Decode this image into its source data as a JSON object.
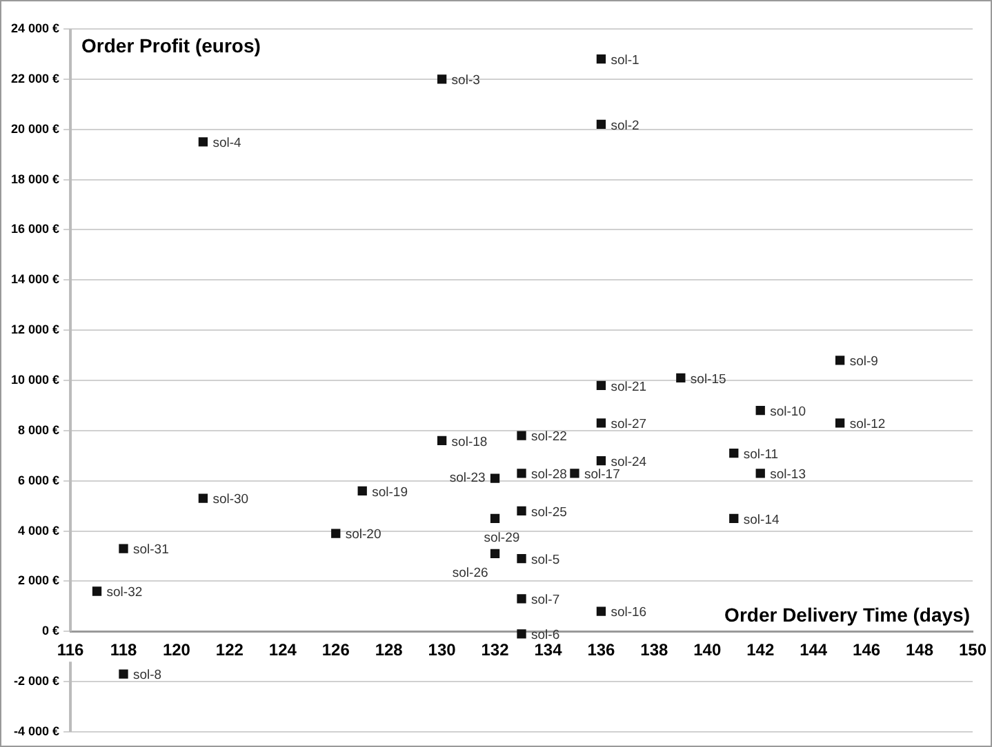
{
  "chart_data": {
    "type": "scatter",
    "xlabel": "Order Delivery Time (days)",
    "ylabel": "Order Profit (euros)",
    "x": [
      136,
      136,
      130,
      121,
      133,
      133,
      133,
      118,
      145,
      142,
      141,
      145,
      142,
      141,
      139,
      136,
      135,
      130,
      127,
      126,
      136,
      133,
      132,
      136,
      133,
      132,
      136,
      133,
      132,
      121,
      118,
      117
    ],
    "series": [
      {
        "color": "#111111",
        "values": [
          22800,
          20200,
          22000,
          19500,
          2900,
          -100,
          1300,
          -1700,
          10800,
          8800,
          7100,
          8300,
          6300,
          4500,
          10100,
          800,
          6300,
          7600,
          5600,
          3900,
          9800,
          7800,
          6100,
          6800,
          4800,
          3100,
          8300,
          6300,
          4500,
          5300,
          3300,
          1600
        ],
        "value_labels": [
          "sol-1",
          "sol-2",
          "sol-3",
          "sol-4",
          "sol-5",
          "sol-6",
          "sol-7",
          "sol-8",
          "sol-9",
          "sol-10",
          "sol-11",
          "sol-12",
          "sol-13",
          "sol-14",
          "sol-15",
          "sol-16",
          "sol-17",
          "sol-18",
          "sol-19",
          "sol-20",
          "sol-21",
          "sol-22",
          "sol-23",
          "sol-24",
          "sol-25",
          "sol-26",
          "sol-27",
          "sol-28",
          "sol-29",
          "sol-30",
          "sol-31",
          "sol-32"
        ]
      }
    ],
    "xlim": [
      116,
      150
    ],
    "xticks": [
      116,
      118,
      120,
      122,
      124,
      126,
      128,
      130,
      132,
      134,
      136,
      138,
      140,
      142,
      144,
      146,
      148,
      150
    ],
    "ylim": [
      -4000,
      24000
    ],
    "yticks": [
      {
        "value": -4000,
        "label": "-4 000 €"
      },
      {
        "value": -2000,
        "label": "-2 000 €"
      },
      {
        "value": 0,
        "label": "0 €"
      },
      {
        "value": 2000,
        "label": "2 000 €"
      },
      {
        "value": 4000,
        "label": "4 000 €"
      },
      {
        "value": 6000,
        "label": "6 000 €"
      },
      {
        "value": 8000,
        "label": "8 000 €"
      },
      {
        "value": 10000,
        "label": "10 000 €"
      },
      {
        "value": 12000,
        "label": "12 000 €"
      },
      {
        "value": 14000,
        "label": "14 000 €"
      },
      {
        "value": 16000,
        "label": "16 000 €"
      },
      {
        "value": 18000,
        "label": "18 000 €"
      },
      {
        "value": 20000,
        "label": "20 000 €"
      },
      {
        "value": 22000,
        "label": "22 000 €"
      },
      {
        "value": 24000,
        "label": "24 000 €"
      }
    ],
    "grid": "y",
    "legend": false,
    "marker": "square"
  }
}
